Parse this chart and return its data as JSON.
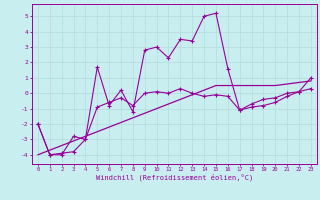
{
  "xlabel": "Windchill (Refroidissement éolien,°C)",
  "background_color": "#c8eef0",
  "line_color": "#990099",
  "grid_color": "#b8dfe0",
  "x_raw": [
    0,
    1,
    2,
    3,
    4,
    5,
    6,
    7,
    8,
    9,
    10,
    11,
    12,
    13,
    14,
    15,
    16,
    17,
    18,
    19,
    20,
    21,
    22,
    23
  ],
  "y_zigzag": [
    -2.0,
    -4.0,
    -4.0,
    -2.8,
    -3.0,
    1.7,
    -0.8,
    0.2,
    -1.2,
    2.8,
    3.0,
    2.3,
    3.5,
    3.4,
    5.0,
    5.2,
    1.6,
    -1.1,
    -0.9,
    -0.8,
    -0.6,
    -0.2,
    0.1,
    1.0
  ],
  "y_middle": [
    -2.0,
    -4.0,
    -3.9,
    -3.8,
    -3.0,
    -0.9,
    -0.6,
    -0.3,
    -0.8,
    0.0,
    0.1,
    0.0,
    0.3,
    0.0,
    -0.2,
    -0.1,
    -0.2,
    -1.1,
    -0.7,
    -0.4,
    -0.3,
    0.0,
    0.1,
    0.3
  ],
  "y_linear": [
    -4.0,
    -3.7,
    -3.4,
    -3.1,
    -2.8,
    -2.5,
    -2.2,
    -1.9,
    -1.6,
    -1.3,
    -1.0,
    -0.7,
    -0.4,
    -0.1,
    0.2,
    0.5,
    0.5,
    0.5,
    0.5,
    0.5,
    0.5,
    0.6,
    0.7,
    0.8
  ],
  "ylim": [
    -4.6,
    5.8
  ],
  "xlim": [
    -0.5,
    23.5
  ],
  "yticks": [
    -4,
    -3,
    -2,
    -1,
    0,
    1,
    2,
    3,
    4,
    5
  ],
  "xticks": [
    0,
    1,
    2,
    3,
    4,
    5,
    6,
    7,
    8,
    9,
    10,
    11,
    12,
    13,
    14,
    15,
    16,
    17,
    18,
    19,
    20,
    21,
    22,
    23
  ]
}
